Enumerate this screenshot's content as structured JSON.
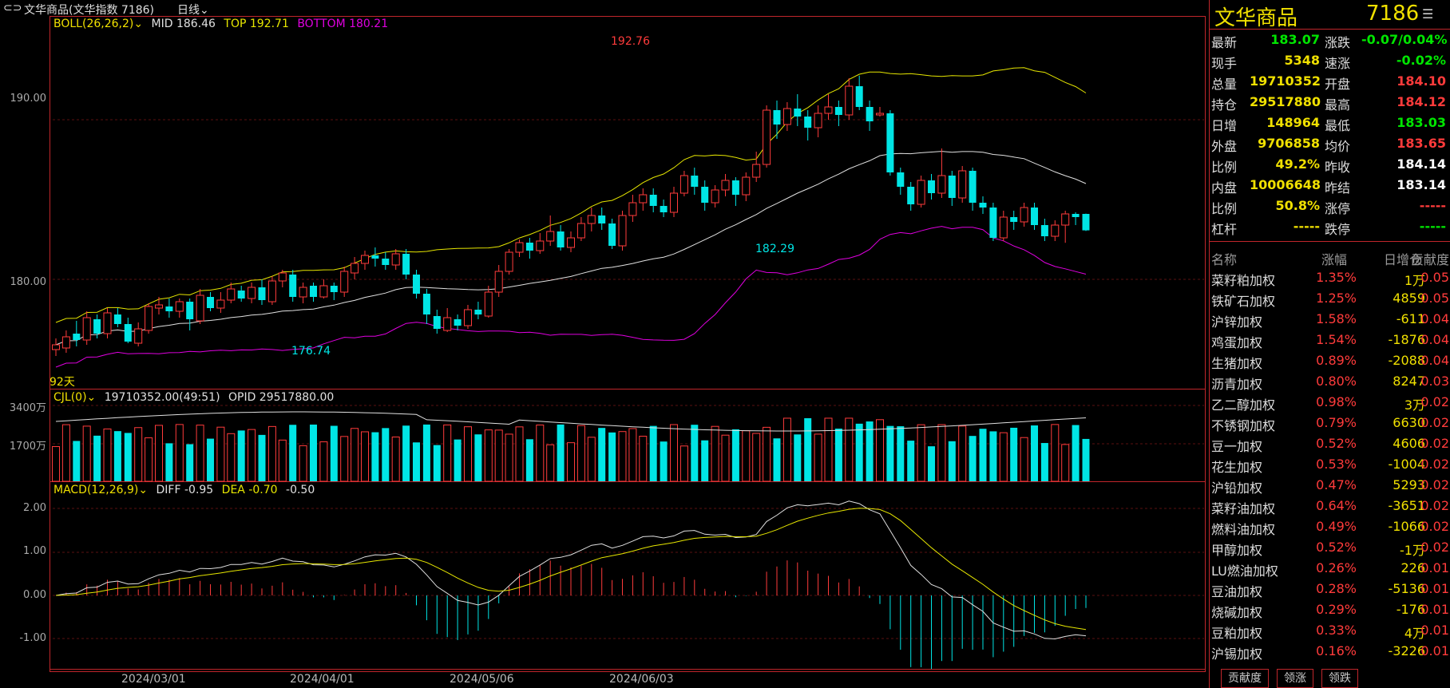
{
  "titlebar": {
    "window_title": "文华商品(文华指数 7186)",
    "period": "日线"
  },
  "indicators": {
    "boll": {
      "name": "BOLL(26,26,2)",
      "mid": "MID 186.46",
      "top": "TOP 192.71",
      "bottom": "BOTTOM 180.21"
    },
    "cjl": {
      "name": "CJL(0)",
      "vol": "19710352.00(49:51)",
      "opid": "OPID 29517880.00"
    },
    "macd": {
      "name": "MACD(12,26,9)",
      "diff": "DIFF -0.95",
      "dea": "DEA -0.70",
      "macd": "-0.50"
    }
  },
  "y_axis": {
    "price": [
      "190.00",
      "180.00"
    ],
    "volume": [
      "3400万",
      "1700万"
    ],
    "macd": [
      "2.00",
      "1.00",
      "0.00",
      "-1.00"
    ]
  },
  "x_axis": [
    "2024/03/01",
    "2024/04/01",
    "2024/05/06",
    "2024/06/03"
  ],
  "annotations": {
    "high": "192.76",
    "low_mid": "176.74",
    "low_end": "182.29",
    "days": "92天"
  },
  "colors": {
    "up": "#ff3b3b",
    "down": "#00e5e5",
    "boll_mid": "#e0e0e0",
    "boll_top": "#e6e600",
    "boll_bottom": "#e000e0",
    "border": "#c0262b"
  },
  "chart_data": {
    "type": "candlestick",
    "price_ylim": [
      174,
      196
    ],
    "candles": [
      {
        "o": 175.6,
        "c": 175.9,
        "h": 176.3,
        "l": 175.2
      },
      {
        "o": 175.7,
        "c": 176.4,
        "h": 176.8,
        "l": 175.4
      },
      {
        "o": 176.6,
        "c": 176.2,
        "h": 177.4,
        "l": 175.8
      },
      {
        "o": 176.2,
        "c": 177.6,
        "h": 178.0,
        "l": 175.9
      },
      {
        "o": 177.5,
        "c": 176.6,
        "h": 177.8,
        "l": 176.3
      },
      {
        "o": 176.6,
        "c": 177.9,
        "h": 178.2,
        "l": 176.3
      },
      {
        "o": 177.8,
        "c": 177.2,
        "h": 178.2,
        "l": 177.0
      },
      {
        "o": 177.2,
        "c": 176.1,
        "h": 177.6,
        "l": 176.0
      },
      {
        "o": 176.0,
        "c": 176.9,
        "h": 177.3,
        "l": 175.8
      },
      {
        "o": 176.8,
        "c": 178.3,
        "h": 178.5,
        "l": 176.6
      },
      {
        "o": 178.2,
        "c": 178.4,
        "h": 178.9,
        "l": 177.8
      },
      {
        "o": 178.3,
        "c": 178.0,
        "h": 178.8,
        "l": 177.6
      },
      {
        "o": 178.0,
        "c": 178.6,
        "h": 178.8,
        "l": 177.6
      },
      {
        "o": 178.6,
        "c": 177.5,
        "h": 178.8,
        "l": 176.8
      },
      {
        "o": 177.4,
        "c": 179.0,
        "h": 179.4,
        "l": 177.2
      },
      {
        "o": 178.9,
        "c": 178.2,
        "h": 179.2,
        "l": 178.0
      },
      {
        "o": 178.2,
        "c": 178.7,
        "h": 179.2,
        "l": 177.9
      },
      {
        "o": 178.7,
        "c": 179.4,
        "h": 179.8,
        "l": 178.5
      },
      {
        "o": 179.3,
        "c": 178.8,
        "h": 179.6,
        "l": 178.6
      },
      {
        "o": 178.8,
        "c": 179.5,
        "h": 179.8,
        "l": 178.5
      },
      {
        "o": 179.5,
        "c": 178.7,
        "h": 180.0,
        "l": 178.4
      },
      {
        "o": 178.6,
        "c": 179.9,
        "h": 180.2,
        "l": 178.4
      },
      {
        "o": 179.9,
        "c": 180.4,
        "h": 180.6,
        "l": 179.5
      },
      {
        "o": 180.3,
        "c": 178.9,
        "h": 180.6,
        "l": 178.6
      },
      {
        "o": 178.9,
        "c": 179.5,
        "h": 179.8,
        "l": 178.5
      },
      {
        "o": 179.6,
        "c": 178.9,
        "h": 179.8,
        "l": 178.6
      },
      {
        "o": 178.9,
        "c": 179.6,
        "h": 180.0,
        "l": 178.8
      },
      {
        "o": 179.6,
        "c": 179.2,
        "h": 179.8,
        "l": 178.7
      },
      {
        "o": 179.2,
        "c": 180.5,
        "h": 180.8,
        "l": 178.9
      },
      {
        "o": 180.4,
        "c": 181.0,
        "h": 181.4,
        "l": 180.0
      },
      {
        "o": 181.0,
        "c": 181.5,
        "h": 181.8,
        "l": 180.6
      },
      {
        "o": 181.5,
        "c": 181.3,
        "h": 182.0,
        "l": 180.8
      },
      {
        "o": 181.3,
        "c": 180.9,
        "h": 181.7,
        "l": 180.6
      },
      {
        "o": 180.9,
        "c": 181.6,
        "h": 181.9,
        "l": 180.6
      },
      {
        "o": 181.6,
        "c": 180.3,
        "h": 181.9,
        "l": 180.0
      },
      {
        "o": 180.3,
        "c": 179.1,
        "h": 180.6,
        "l": 178.8
      },
      {
        "o": 179.1,
        "c": 177.8,
        "h": 179.4,
        "l": 177.2
      },
      {
        "o": 177.7,
        "c": 176.9,
        "h": 178.1,
        "l": 176.6
      },
      {
        "o": 176.8,
        "c": 177.6,
        "h": 178.2,
        "l": 176.7
      },
      {
        "o": 177.5,
        "c": 177.1,
        "h": 177.8,
        "l": 176.8
      },
      {
        "o": 177.1,
        "c": 178.1,
        "h": 178.4,
        "l": 176.9
      },
      {
        "o": 178.1,
        "c": 177.8,
        "h": 178.6,
        "l": 177.5
      },
      {
        "o": 177.7,
        "c": 179.2,
        "h": 179.6,
        "l": 177.6
      },
      {
        "o": 179.2,
        "c": 180.5,
        "h": 180.9,
        "l": 178.9
      },
      {
        "o": 180.5,
        "c": 181.7,
        "h": 181.9,
        "l": 180.3
      },
      {
        "o": 181.7,
        "c": 182.3,
        "h": 182.5,
        "l": 181.4
      },
      {
        "o": 182.3,
        "c": 181.8,
        "h": 182.6,
        "l": 181.3
      },
      {
        "o": 181.8,
        "c": 182.4,
        "h": 182.9,
        "l": 181.6
      },
      {
        "o": 182.4,
        "c": 183.0,
        "h": 184.0,
        "l": 182.1
      },
      {
        "o": 183.0,
        "c": 182.0,
        "h": 183.4,
        "l": 181.8
      },
      {
        "o": 182.0,
        "c": 182.6,
        "h": 183.0,
        "l": 181.7
      },
      {
        "o": 182.6,
        "c": 183.5,
        "h": 183.9,
        "l": 182.4
      },
      {
        "o": 183.5,
        "c": 184.0,
        "h": 184.5,
        "l": 183.0
      },
      {
        "o": 184.0,
        "c": 183.5,
        "h": 184.5,
        "l": 183.1
      },
      {
        "o": 183.5,
        "c": 182.1,
        "h": 183.8,
        "l": 181.9
      },
      {
        "o": 182.1,
        "c": 184.0,
        "h": 184.3,
        "l": 181.8
      },
      {
        "o": 184.0,
        "c": 184.8,
        "h": 185.3,
        "l": 183.6
      },
      {
        "o": 184.8,
        "c": 185.3,
        "h": 185.7,
        "l": 184.3
      },
      {
        "o": 185.3,
        "c": 184.6,
        "h": 185.7,
        "l": 184.2
      },
      {
        "o": 184.6,
        "c": 184.2,
        "h": 185.0,
        "l": 183.9
      },
      {
        "o": 184.2,
        "c": 185.4,
        "h": 185.8,
        "l": 183.9
      },
      {
        "o": 185.4,
        "c": 186.5,
        "h": 186.8,
        "l": 185.2
      },
      {
        "o": 186.5,
        "c": 185.8,
        "h": 187.0,
        "l": 185.3
      },
      {
        "o": 185.8,
        "c": 184.8,
        "h": 186.2,
        "l": 184.3
      },
      {
        "o": 184.8,
        "c": 185.6,
        "h": 185.9,
        "l": 184.5
      },
      {
        "o": 185.6,
        "c": 186.2,
        "h": 186.6,
        "l": 185.2
      },
      {
        "o": 186.2,
        "c": 185.3,
        "h": 186.4,
        "l": 184.6
      },
      {
        "o": 185.3,
        "c": 186.4,
        "h": 186.7,
        "l": 184.9
      },
      {
        "o": 186.4,
        "c": 187.2,
        "h": 188.0,
        "l": 186.1
      },
      {
        "o": 187.2,
        "c": 190.6,
        "h": 190.9,
        "l": 187.0
      },
      {
        "o": 190.6,
        "c": 189.7,
        "h": 191.2,
        "l": 188.8
      },
      {
        "o": 189.7,
        "c": 190.7,
        "h": 191.1,
        "l": 189.3
      },
      {
        "o": 190.7,
        "c": 190.2,
        "h": 191.6,
        "l": 189.6
      },
      {
        "o": 190.2,
        "c": 189.5,
        "h": 190.6,
        "l": 188.7
      },
      {
        "o": 189.5,
        "c": 190.4,
        "h": 190.9,
        "l": 188.9
      },
      {
        "o": 190.4,
        "c": 190.8,
        "h": 191.6,
        "l": 190.0
      },
      {
        "o": 190.8,
        "c": 190.3,
        "h": 191.2,
        "l": 189.6
      },
      {
        "o": 190.3,
        "c": 192.1,
        "h": 192.6,
        "l": 190.0
      },
      {
        "o": 192.1,
        "c": 190.8,
        "h": 192.76,
        "l": 190.6
      },
      {
        "o": 190.8,
        "c": 189.9,
        "h": 191.2,
        "l": 189.3
      },
      {
        "o": 190.3,
        "c": 190.4,
        "h": 190.8,
        "l": 190.2
      },
      {
        "o": 190.4,
        "c": 186.7,
        "h": 190.6,
        "l": 186.5
      },
      {
        "o": 186.7,
        "c": 185.8,
        "h": 187.0,
        "l": 185.3
      },
      {
        "o": 185.8,
        "c": 184.7,
        "h": 186.1,
        "l": 184.3
      },
      {
        "o": 184.7,
        "c": 186.2,
        "h": 186.5,
        "l": 184.5
      },
      {
        "o": 186.2,
        "c": 185.4,
        "h": 186.6,
        "l": 185.0
      },
      {
        "o": 185.4,
        "c": 186.5,
        "h": 188.2,
        "l": 185.1
      },
      {
        "o": 186.5,
        "c": 185.1,
        "h": 186.8,
        "l": 184.6
      },
      {
        "o": 185.1,
        "c": 186.8,
        "h": 187.1,
        "l": 184.8
      },
      {
        "o": 186.8,
        "c": 184.8,
        "h": 187.0,
        "l": 184.3
      },
      {
        "o": 184.8,
        "c": 184.5,
        "h": 185.2,
        "l": 184.1
      },
      {
        "o": 184.5,
        "c": 182.6,
        "h": 184.8,
        "l": 182.4
      },
      {
        "o": 182.6,
        "c": 183.9,
        "h": 184.3,
        "l": 182.4
      },
      {
        "o": 183.9,
        "c": 183.6,
        "h": 184.3,
        "l": 183.1
      },
      {
        "o": 183.6,
        "c": 184.5,
        "h": 184.8,
        "l": 183.3
      },
      {
        "o": 184.5,
        "c": 183.4,
        "h": 184.8,
        "l": 183.1
      },
      {
        "o": 183.4,
        "c": 182.7,
        "h": 183.8,
        "l": 182.4
      },
      {
        "o": 182.7,
        "c": 183.4,
        "h": 183.7,
        "l": 182.4
      },
      {
        "o": 183.4,
        "c": 184.1,
        "h": 184.3,
        "l": 182.29
      },
      {
        "o": 184.1,
        "c": 183.9,
        "h": 184.2,
        "l": 183.4
      },
      {
        "o": 184.1,
        "c": 183.07,
        "h": 184.12,
        "l": 183.03
      }
    ]
  },
  "quote": {
    "name": "文华商品",
    "code": "7186",
    "rows": [
      {
        "l1": "最新",
        "v1": "183.07",
        "c1": "green",
        "l2": "涨跌",
        "v2": "-0.07/0.04%",
        "c2": "green"
      },
      {
        "l1": "现手",
        "v1": "5348",
        "c1": "yellow",
        "l2": "速涨",
        "v2": "-0.02%",
        "c2": "green"
      },
      {
        "l1": "总量",
        "v1": "19710352",
        "c1": "yellow",
        "l2": "开盘",
        "v2": "184.10",
        "c2": "red"
      },
      {
        "l1": "持仓",
        "v1": "29517880",
        "c1": "yellow",
        "l2": "最高",
        "v2": "184.12",
        "c2": "red"
      },
      {
        "l1": "日增",
        "v1": "148964",
        "c1": "yellow",
        "l2": "最低",
        "v2": "183.03",
        "c2": "green"
      },
      {
        "l1": "外盘",
        "v1": "9706858",
        "c1": "yellow",
        "l2": "均价",
        "v2": "183.65",
        "c2": "red"
      },
      {
        "l1": "比例",
        "v1": "49.2%",
        "c1": "yellow",
        "l2": "昨收",
        "v2": "184.14",
        "c2": "white"
      },
      {
        "l1": "内盘",
        "v1": "10006648",
        "c1": "yellow",
        "l2": "昨结",
        "v2": "183.14",
        "c2": "white"
      },
      {
        "l1": "比例",
        "v1": "50.8%",
        "c1": "yellow",
        "l2": "涨停",
        "v2": "-----",
        "c2": "red"
      },
      {
        "l1": "杠杆",
        "v1": "-----",
        "c1": "yellow",
        "l2": "跌停",
        "v2": "-----",
        "c2": "green"
      }
    ]
  },
  "contrib_table": {
    "headers": [
      "名称",
      "涨幅",
      "日增仓",
      "贡献度"
    ],
    "rows": [
      [
        "菜籽粕加权",
        "1.35%",
        "1万",
        "0.05"
      ],
      [
        "铁矿石加权",
        "1.25%",
        "4859",
        "0.05"
      ],
      [
        "沪锌加权",
        "1.58%",
        "-611",
        "0.04"
      ],
      [
        "鸡蛋加权",
        "1.54%",
        "-1876",
        "0.04"
      ],
      [
        "生猪加权",
        "0.89%",
        "-2088",
        "0.04"
      ],
      [
        "沥青加权",
        "0.80%",
        "8247",
        "0.03"
      ],
      [
        "乙二醇加权",
        "0.98%",
        "3万",
        "0.02"
      ],
      [
        "不锈钢加权",
        "0.79%",
        "6630",
        "0.02"
      ],
      [
        "豆一加权",
        "0.52%",
        "4606",
        "0.02"
      ],
      [
        "花生加权",
        "0.53%",
        "-1004",
        "0.02"
      ],
      [
        "沪铅加权",
        "0.47%",
        "5293",
        "0.02"
      ],
      [
        "菜籽油加权",
        "0.64%",
        "-3651",
        "0.02"
      ],
      [
        "燃料油加权",
        "0.49%",
        "-1066",
        "0.02"
      ],
      [
        "甲醇加权",
        "0.52%",
        "-1万",
        "0.02"
      ],
      [
        "LU燃油加权",
        "0.26%",
        "226",
        "0.01"
      ],
      [
        "豆油加权",
        "0.28%",
        "-5136",
        "0.01"
      ],
      [
        "烧碱加权",
        "0.29%",
        "-176",
        "0.01"
      ],
      [
        "豆粕加权",
        "0.33%",
        "4万",
        "0.01"
      ],
      [
        "沪锡加权",
        "0.16%",
        "-3226",
        "0.01"
      ]
    ]
  },
  "bottom_tabs": [
    "贡献度",
    "领涨",
    "领跌"
  ]
}
